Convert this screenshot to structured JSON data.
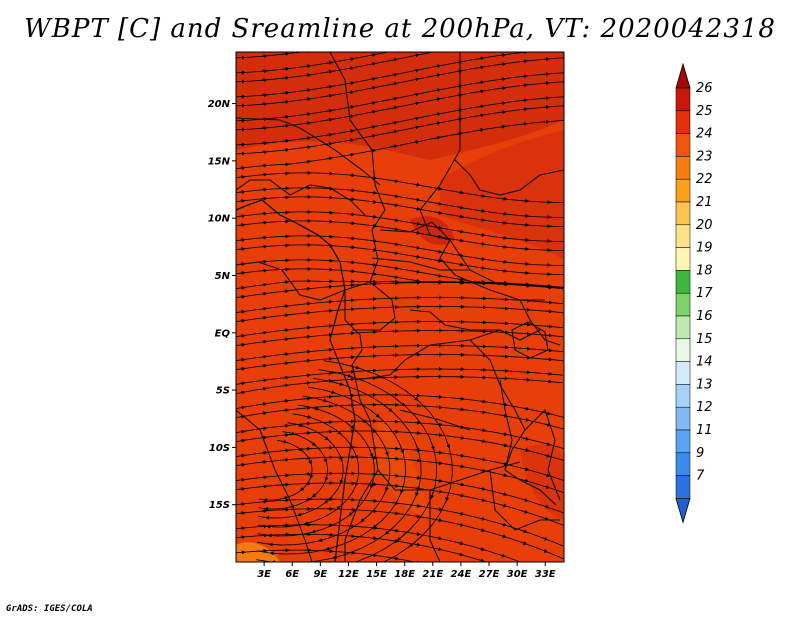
{
  "title": "WBPT [C] and Sreamline at 200hPa, VT: 2020042318",
  "footer": "GrADS: IGES/COLA",
  "map": {
    "lat_range": [
      -20,
      24.5
    ],
    "lon_range": [
      0,
      35
    ],
    "lat_ticks": [
      {
        "value": 20,
        "label": "20N"
      },
      {
        "value": 15,
        "label": "15N"
      },
      {
        "value": 10,
        "label": "10N"
      },
      {
        "value": 5,
        "label": "5N"
      },
      {
        "value": 0,
        "label": "EQ"
      },
      {
        "value": -5,
        "label": "5S"
      },
      {
        "value": -10,
        "label": "10S"
      },
      {
        "value": -15,
        "label": "15S"
      }
    ],
    "lon_ticks": [
      {
        "value": 3,
        "label": "3E"
      },
      {
        "value": 6,
        "label": "6E"
      },
      {
        "value": 9,
        "label": "9E"
      },
      {
        "value": 12,
        "label": "12E"
      },
      {
        "value": 15,
        "label": "15E"
      },
      {
        "value": 18,
        "label": "18E"
      },
      {
        "value": 21,
        "label": "21E"
      },
      {
        "value": 24,
        "label": "24E"
      },
      {
        "value": 27,
        "label": "27E"
      },
      {
        "value": 30,
        "label": "30E"
      },
      {
        "value": 33,
        "label": "33E"
      }
    ],
    "dominant_wbpt_class": "23-24",
    "colors": {
      "background": "#e83f0a",
      "warm": "#c8210c",
      "cool": "#f26b12"
    }
  },
  "colorbar": {
    "labels": [
      "7",
      "9",
      "11",
      "12",
      "13",
      "14",
      "15",
      "16",
      "17",
      "18",
      "19",
      "20",
      "21",
      "22",
      "23",
      "24",
      "25",
      "26"
    ],
    "colors": [
      "#1f5fd0",
      "#2a73df",
      "#3d8aea",
      "#5aa2f2",
      "#7fbaf6",
      "#a6d2f9",
      "#d2ebfb",
      "#e9f8e6",
      "#bfe9ae",
      "#7cd36b",
      "#3fb842",
      "#fff6b3",
      "#fde28a",
      "#fbc452",
      "#f9a01c",
      "#f67d0f",
      "#f05510",
      "#e4300e",
      "#c9180b",
      "#a40a08"
    ]
  }
}
